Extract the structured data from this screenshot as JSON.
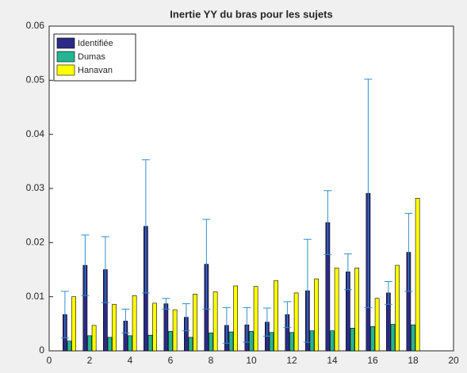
{
  "chart_data": {
    "type": "bar",
    "title": "Inertie YY du bras pour les sujets",
    "x": [
      1,
      2,
      3,
      4,
      5,
      6,
      7,
      8,
      9,
      10,
      11,
      12,
      13,
      14,
      15,
      16,
      17,
      18
    ],
    "series": [
      {
        "name": "Identifiée",
        "color": "#2b2b85",
        "values": [
          0.0067,
          0.0158,
          0.015,
          0.0055,
          0.023,
          0.0087,
          0.0062,
          0.016,
          0.0047,
          0.0048,
          0.0053,
          0.0067,
          0.0111,
          0.0237,
          0.0146,
          0.0291,
          0.0107,
          0.0182
        ],
        "errors": [
          0.0043,
          0.0056,
          0.0061,
          0.0022,
          0.0123,
          0.001,
          0.0025,
          0.0083,
          0.0033,
          0.0032,
          0.0026,
          0.0024,
          0.0095,
          0.0059,
          0.0033,
          0.0211,
          0.0021,
          0.0072
        ],
        "error_color": "#2f8fcf"
      },
      {
        "name": "Dumas",
        "color": "#26b592",
        "values": [
          0.0018,
          0.0028,
          0.0025,
          0.0028,
          0.0029,
          0.0036,
          0.0025,
          0.0033,
          0.0035,
          0.0036,
          0.0034,
          0.0034,
          0.0037,
          0.0037,
          0.0042,
          0.0045,
          0.0049,
          0.0048
        ]
      },
      {
        "name": "Hanavan",
        "color": "#ffff00",
        "values": [
          0.01,
          0.0047,
          0.0086,
          0.0102,
          0.0088,
          0.0076,
          0.0105,
          0.0109,
          0.012,
          0.0119,
          0.013,
          0.0107,
          0.0133,
          0.0153,
          0.0153,
          0.0097,
          0.0158,
          0.0282
        ]
      }
    ],
    "xlim": [
      0,
      20
    ],
    "xticks": [
      0,
      2,
      4,
      6,
      8,
      10,
      12,
      14,
      16,
      18,
      20
    ],
    "ylim": [
      0,
      0.06
    ],
    "yticks": [
      0,
      0.01,
      0.02,
      0.03,
      0.04,
      0.05,
      0.06
    ],
    "legend": "upper left"
  }
}
